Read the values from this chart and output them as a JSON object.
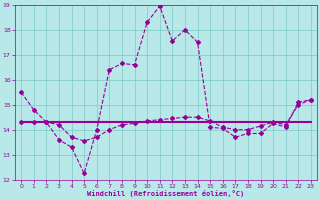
{
  "xlabel": "Windchill (Refroidissement éolien,°C)",
  "background_color": "#b8e8e8",
  "grid_color": "#88cccc",
  "line_color": "#990099",
  "xlim": [
    -0.5,
    23.5
  ],
  "ylim": [
    12,
    19
  ],
  "yticks": [
    12,
    13,
    14,
    15,
    16,
    17,
    18,
    19
  ],
  "xticks": [
    0,
    1,
    2,
    3,
    4,
    5,
    6,
    7,
    8,
    9,
    10,
    11,
    12,
    13,
    14,
    15,
    16,
    17,
    18,
    19,
    20,
    21,
    22,
    23
  ],
  "s1_x": [
    0,
    1,
    2,
    3,
    4,
    5,
    6,
    7,
    8,
    9,
    10,
    11,
    12,
    13,
    14,
    15,
    16,
    17,
    18,
    19,
    20,
    21,
    22,
    23
  ],
  "s1_y": [
    15.5,
    14.8,
    14.3,
    13.6,
    13.3,
    12.25,
    14.0,
    16.4,
    16.65,
    16.6,
    18.3,
    18.95,
    17.55,
    18.0,
    17.5,
    14.1,
    14.05,
    13.7,
    13.85,
    13.85,
    14.25,
    14.1,
    15.1,
    15.2
  ],
  "s2_x": [
    0,
    1,
    2,
    3,
    4,
    5,
    6,
    7,
    8,
    9,
    10,
    11,
    12,
    13,
    14,
    15,
    16,
    17,
    18,
    19,
    20,
    21,
    22,
    23
  ],
  "s2_y": [
    14.3,
    14.3,
    14.3,
    14.3,
    14.3,
    14.3,
    14.3,
    14.3,
    14.3,
    14.3,
    14.3,
    14.3,
    14.3,
    14.3,
    14.3,
    14.3,
    14.3,
    14.3,
    14.3,
    14.3,
    14.3,
    14.3,
    14.3,
    14.3
  ],
  "s3_x": [
    0,
    1,
    2,
    3,
    4,
    5,
    6,
    7,
    8,
    9,
    10,
    11,
    12,
    13,
    14,
    15,
    16,
    17,
    18,
    19,
    20,
    21,
    22,
    23
  ],
  "s3_y": [
    14.3,
    14.3,
    14.3,
    14.2,
    13.7,
    13.55,
    13.7,
    14.0,
    14.2,
    14.25,
    14.35,
    14.4,
    14.45,
    14.5,
    14.5,
    14.35,
    14.1,
    14.0,
    14.0,
    14.15,
    14.3,
    14.2,
    15.0,
    15.2
  ]
}
